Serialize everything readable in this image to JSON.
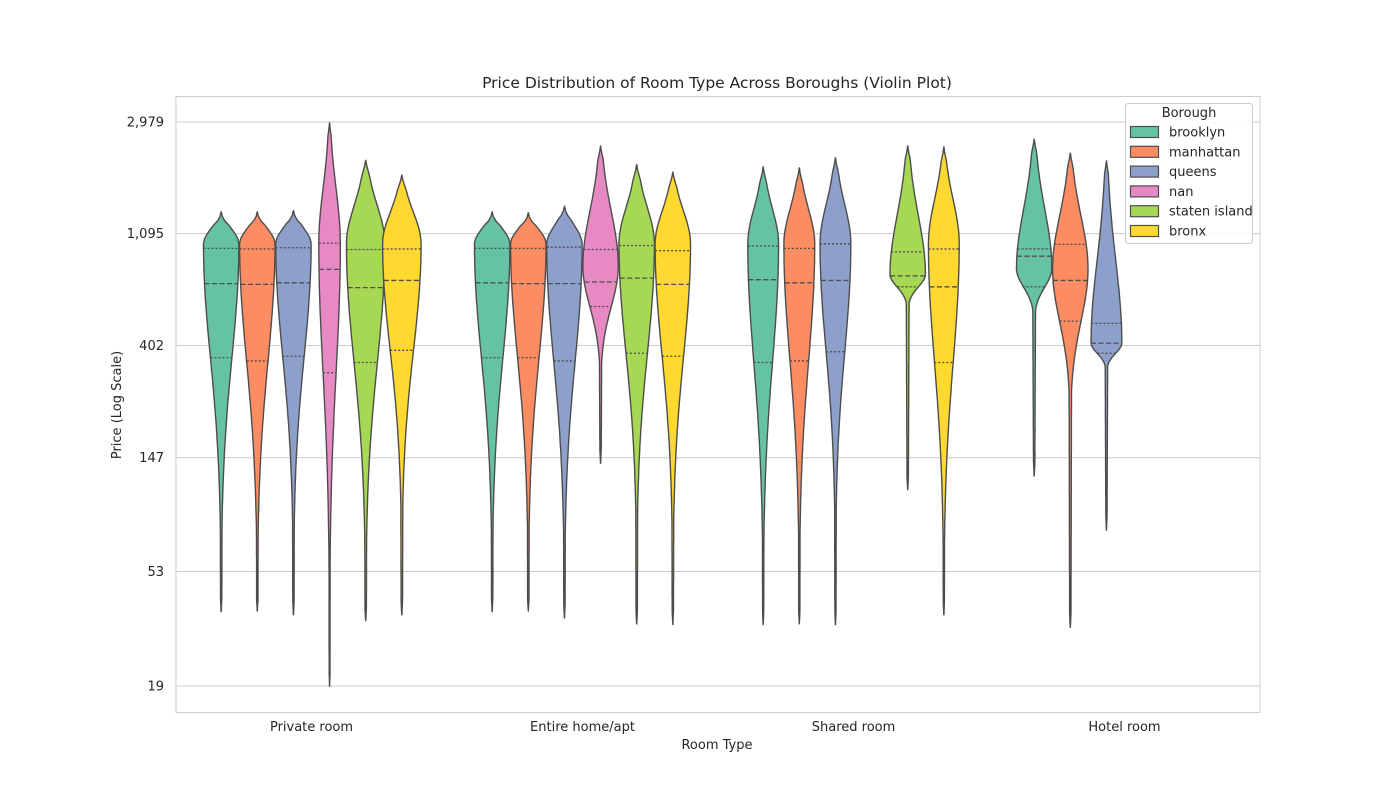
{
  "chart_data": {
    "type": "violin",
    "title": "Price Distribution of Room Type Across Boroughs (Violin Plot)",
    "xlabel": "Room Type",
    "ylabel": "Price (Log Scale)",
    "y_scale": "log",
    "yticks": [
      19,
      53,
      147,
      402,
      1095,
      2979
    ],
    "ytick_labels": [
      "19",
      "53",
      "147",
      "402",
      "1,095",
      "2,979"
    ],
    "ylim": [
      16.7,
      3460
    ],
    "grid": "horizontal",
    "legend": {
      "title": "Borough",
      "placement": "top-right"
    },
    "categories": [
      "Private room",
      "Entire home/apt",
      "Shared room",
      "Hotel room"
    ],
    "series": [
      {
        "name": "brooklyn",
        "color": "#66c2a5"
      },
      {
        "name": "manhattan",
        "color": "#fc8d62"
      },
      {
        "name": "queens",
        "color": "#8da0cb"
      },
      {
        "name": "nan",
        "color": "#e78ac3"
      },
      {
        "name": "staten island",
        "color": "#a6d854"
      },
      {
        "name": "bronx",
        "color": "#ffd92f"
      }
    ],
    "violins": [
      {
        "category": "Private room",
        "borough": "brooklyn",
        "min": 37,
        "max": 1330,
        "q1": 360,
        "median": 700,
        "q3": 960,
        "peak": 1000,
        "width": 0.46
      },
      {
        "category": "Private room",
        "borough": "manhattan",
        "min": 37,
        "max": 1330,
        "q1": 350,
        "median": 695,
        "q3": 955,
        "peak": 1000,
        "width": 0.46
      },
      {
        "category": "Private room",
        "borough": "queens",
        "min": 36,
        "max": 1345,
        "q1": 365,
        "median": 705,
        "q3": 965,
        "peak": 1000,
        "width": 0.46
      },
      {
        "category": "Private room",
        "borough": "nan",
        "min": 19,
        "max": 2950,
        "q1": 315,
        "median": 795,
        "q3": 1005,
        "peak": 1000,
        "width": 0.28
      },
      {
        "category": "Private room",
        "borough": "staten island",
        "min": 34,
        "max": 2110,
        "q1": 345,
        "median": 675,
        "q3": 950,
        "peak": 1000,
        "width": 0.5
      },
      {
        "category": "Private room",
        "borough": "bronx",
        "min": 36,
        "max": 1850,
        "q1": 385,
        "median": 720,
        "q3": 955,
        "peak": 1000,
        "width": 0.5
      }
    ]
  },
  "violin_groups": [
    [
      {
        "min": 37,
        "max": 1330,
        "q1": 360,
        "median": 700,
        "q3": 960,
        "peak": 1000,
        "width": 0.46
      },
      {
        "min": 37,
        "max": 1330,
        "q1": 350,
        "median": 695,
        "q3": 955,
        "peak": 1000,
        "width": 0.46
      },
      {
        "min": 36,
        "max": 1345,
        "q1": 365,
        "median": 705,
        "q3": 965,
        "peak": 1000,
        "width": 0.46
      },
      {
        "min": 19,
        "max": 2950,
        "q1": 315,
        "median": 795,
        "q3": 1005,
        "peak": 1000,
        "width": 0.28
      },
      {
        "min": 34,
        "max": 2110,
        "q1": 345,
        "median": 675,
        "q3": 950,
        "peak": 1000,
        "width": 0.5
      },
      {
        "min": 36,
        "max": 1850,
        "q1": 385,
        "median": 720,
        "q3": 955,
        "peak": 1000,
        "width": 0.5
      }
    ],
    [
      {
        "min": 37,
        "max": 1330,
        "q1": 360,
        "median": 705,
        "q3": 960,
        "peak": 1000,
        "width": 0.46
      },
      {
        "min": 37,
        "max": 1320,
        "q1": 360,
        "median": 700,
        "q3": 960,
        "peak": 1000,
        "width": 0.46
      },
      {
        "min": 35,
        "max": 1400,
        "q1": 350,
        "median": 700,
        "q3": 970,
        "peak": 1000,
        "width": 0.46
      },
      {
        "min": 140,
        "max": 2400,
        "q1": 570,
        "median": 710,
        "q3": 950,
        "peak": 820,
        "width": 0.46
      },
      {
        "min": 33,
        "max": 2030,
        "q1": 375,
        "median": 735,
        "q3": 985,
        "peak": 1000,
        "width": 0.46
      },
      {
        "min": 33,
        "max": 1900,
        "q1": 365,
        "median": 695,
        "q3": 940,
        "peak": 1000,
        "width": 0.46
      }
    ],
    [
      {
        "min": 33,
        "max": 1990,
        "q1": 345,
        "median": 725,
        "q3": 980,
        "peak": 1000,
        "width": 0.4
      },
      {
        "min": 33,
        "max": 1970,
        "q1": 350,
        "median": 705,
        "q3": 960,
        "peak": 1000,
        "width": 0.4
      },
      {
        "min": 33,
        "max": 2160,
        "q1": 380,
        "median": 720,
        "q3": 1000,
        "peak": 1000,
        "width": 0.4
      },
      null,
      {
        "min": 110,
        "max": 2400,
        "q1": 680,
        "median": 750,
        "q3": 930,
        "peak": 760,
        "width": 0.46
      },
      {
        "min": 36,
        "max": 2380,
        "q1": 345,
        "median": 680,
        "q3": 955,
        "peak": 1000,
        "width": 0.4
      }
    ],
    [
      {
        "min": 125,
        "max": 2550,
        "q1": 680,
        "median": 895,
        "q3": 955,
        "peak": 800,
        "width": 0.46
      },
      {
        "min": 32,
        "max": 2250,
        "q1": 500,
        "median": 720,
        "q3": 995,
        "peak": 800,
        "width": 0.46
      },
      {
        "min": 77,
        "max": 2100,
        "q1": 375,
        "median": 410,
        "q3": 490,
        "peak": 410,
        "width": 0.4
      },
      null,
      null,
      null
    ]
  ]
}
